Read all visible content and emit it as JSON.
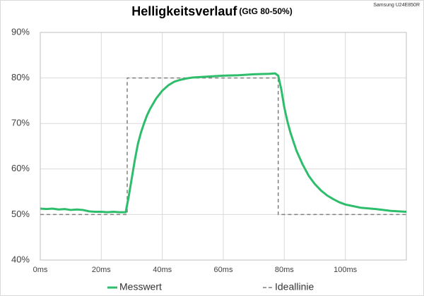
{
  "chart_data": {
    "type": "line",
    "title": "Helligkeitsverlauf",
    "subtitle": "(GtG 80-50%)",
    "annotation": "Samsung U24E850R",
    "xlim": [
      0,
      120
    ],
    "xticks": [
      {
        "value": 0,
        "label": "0ms"
      },
      {
        "value": 20,
        "label": "20ms"
      },
      {
        "value": 40,
        "label": "40ms"
      },
      {
        "value": 60,
        "label": "60ms"
      },
      {
        "value": 80,
        "label": "80ms"
      },
      {
        "value": 100,
        "label": "100ms"
      }
    ],
    "ylim": [
      40,
      90
    ],
    "yticks": [
      {
        "value": 40,
        "label": "40%"
      },
      {
        "value": 50,
        "label": "50%"
      },
      {
        "value": 60,
        "label": "60%"
      },
      {
        "value": 70,
        "label": "70%"
      },
      {
        "value": 80,
        "label": "80%"
      },
      {
        "value": 90,
        "label": "90%"
      }
    ],
    "grid": true,
    "legend": "bottom",
    "series": [
      {
        "name": "Messwert",
        "color": "#2ebd6b",
        "dashed": false,
        "x": [
          0,
          2,
          4,
          6,
          8,
          10,
          12,
          14,
          16,
          18,
          20,
          22,
          24,
          26,
          28,
          29,
          30,
          31,
          32,
          33,
          34,
          35,
          36,
          38,
          40,
          42,
          44,
          46,
          48,
          50,
          55,
          60,
          65,
          70,
          75,
          77,
          78,
          79,
          80,
          81,
          82,
          83,
          84,
          85,
          86,
          88,
          90,
          92,
          94,
          96,
          98,
          100,
          105,
          110,
          115,
          120
        ],
        "values": [
          51.3,
          51.2,
          51.3,
          51.1,
          51.2,
          51.0,
          51.1,
          51.0,
          50.7,
          50.6,
          50.6,
          50.5,
          50.6,
          50.5,
          50.5,
          54,
          58,
          62,
          65.5,
          68,
          70,
          71.8,
          73.2,
          75.5,
          77.2,
          78.4,
          79.2,
          79.6,
          79.9,
          80.1,
          80.3,
          80.5,
          80.6,
          80.8,
          80.9,
          81,
          80.5,
          77.5,
          73.5,
          70.5,
          68,
          66,
          64,
          62.5,
          61,
          58.5,
          56.7,
          55.3,
          54.2,
          53.4,
          52.7,
          52.2,
          51.5,
          51.2,
          50.8,
          50.6
        ]
      },
      {
        "name": "Ideallinie",
        "color": "#7f7f7f",
        "dashed": true,
        "x": [
          0,
          28.5,
          28.5,
          78,
          78,
          120
        ],
        "values": [
          50,
          50,
          80,
          80,
          50,
          50
        ]
      }
    ]
  }
}
